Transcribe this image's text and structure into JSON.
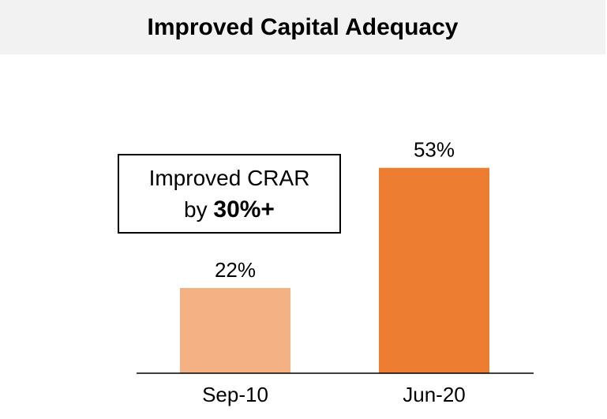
{
  "title": "Improved Capital Adequacy",
  "callout": {
    "line1": "Improved CRAR",
    "line2_prefix": "by ",
    "line2_emph": "30%+"
  },
  "colors": {
    "title_bg": "#f2f2f2",
    "bar_sep10": "#f4b183",
    "bar_jun20": "#ed7d31"
  },
  "chart_data": {
    "type": "bar",
    "categories": [
      "Sep-10",
      "Jun-20"
    ],
    "values": [
      22,
      53
    ],
    "data_labels": [
      "22%",
      "53%"
    ],
    "unit": "%",
    "ylim": [
      0,
      56
    ],
    "grid": false,
    "legend": "none"
  }
}
